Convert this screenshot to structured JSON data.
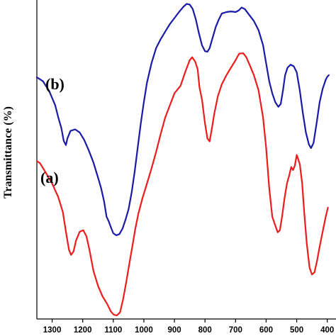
{
  "chart_data": {
    "type": "line",
    "title": "",
    "xlabel": "",
    "ylabel": "Transmittance (%)",
    "xlim": [
      1350,
      390
    ],
    "x_reversed": true,
    "x_ticks": [
      1300,
      1200,
      1100,
      1000,
      900,
      800,
      700,
      600,
      500,
      400
    ],
    "y_ticks": [],
    "grid": false,
    "series": [
      {
        "name": "(b)",
        "color": "#1a1aa8",
        "points": [
          [
            1350,
            75.3
          ],
          [
            1330,
            74.0
          ],
          [
            1310,
            70.8
          ],
          [
            1290,
            66.0
          ],
          [
            1280,
            62.0
          ],
          [
            1270,
            58.5
          ],
          [
            1262,
            54.2
          ],
          [
            1255,
            52.8
          ],
          [
            1250,
            55.0
          ],
          [
            1240,
            57.5
          ],
          [
            1225,
            58.0
          ],
          [
            1210,
            57.0
          ],
          [
            1195,
            54.5
          ],
          [
            1180,
            51.0
          ],
          [
            1165,
            47.0
          ],
          [
            1150,
            42.0
          ],
          [
            1140,
            38.5
          ],
          [
            1130,
            34.0
          ],
          [
            1122,
            29.0
          ],
          [
            1115,
            27.5
          ],
          [
            1108,
            25.5
          ],
          [
            1100,
            23.5
          ],
          [
            1090,
            22.8
          ],
          [
            1080,
            23.2
          ],
          [
            1070,
            25.0
          ],
          [
            1060,
            28.0
          ],
          [
            1050,
            31.5
          ],
          [
            1040,
            37.0
          ],
          [
            1030,
            44.0
          ],
          [
            1020,
            52.0
          ],
          [
            1010,
            60.0
          ],
          [
            1000,
            67.0
          ],
          [
            990,
            73.5
          ],
          [
            975,
            80.0
          ],
          [
            960,
            85.0
          ],
          [
            945,
            88.0
          ],
          [
            930,
            90.5
          ],
          [
            915,
            93.0
          ],
          [
            900,
            95.0
          ],
          [
            885,
            97.0
          ],
          [
            870,
            98.8
          ],
          [
            860,
            99.7
          ],
          [
            850,
            99.5
          ],
          [
            840,
            98.0
          ],
          [
            830,
            94.5
          ],
          [
            820,
            90.0
          ],
          [
            810,
            86.0
          ],
          [
            800,
            84.0
          ],
          [
            792,
            83.8
          ],
          [
            785,
            85.0
          ],
          [
            775,
            88.5
          ],
          [
            765,
            92.0
          ],
          [
            755,
            94.5
          ],
          [
            745,
            96.5
          ],
          [
            730,
            97.0
          ],
          [
            715,
            97.2
          ],
          [
            700,
            97.0
          ],
          [
            690,
            97.5
          ],
          [
            680,
            98.5
          ],
          [
            670,
            98.0
          ],
          [
            655,
            96.0
          ],
          [
            640,
            94.0
          ],
          [
            625,
            91.0
          ],
          [
            610,
            86.0
          ],
          [
            600,
            80.0
          ],
          [
            590,
            74.0
          ],
          [
            580,
            70.0
          ],
          [
            570,
            67.0
          ],
          [
            560,
            65.5
          ],
          [
            552,
            66.5
          ],
          [
            545,
            71.0
          ],
          [
            538,
            76.0
          ],
          [
            530,
            78.5
          ],
          [
            520,
            79.5
          ],
          [
            510,
            79.0
          ],
          [
            500,
            77.0
          ],
          [
            490,
            71.0
          ],
          [
            480,
            63.5
          ],
          [
            470,
            57.0
          ],
          [
            460,
            53.0
          ],
          [
            453,
            51.8
          ],
          [
            445,
            53.5
          ],
          [
            435,
            60.0
          ],
          [
            425,
            67.0
          ],
          [
            415,
            71.5
          ],
          [
            405,
            74.5
          ],
          [
            400,
            75.5
          ],
          [
            395,
            76.0
          ]
        ]
      },
      {
        "name": "(a)",
        "color": "#ee1c1c",
        "points": [
          [
            1350,
            47.5
          ],
          [
            1340,
            46.8
          ],
          [
            1320,
            43.5
          ],
          [
            1300,
            40.0
          ],
          [
            1280,
            35.5
          ],
          [
            1265,
            30.5
          ],
          [
            1255,
            24.0
          ],
          [
            1245,
            18.0
          ],
          [
            1238,
            16.3
          ],
          [
            1230,
            17.5
          ],
          [
            1222,
            21.0
          ],
          [
            1210,
            24.0
          ],
          [
            1198,
            24.5
          ],
          [
            1188,
            22.5
          ],
          [
            1178,
            18.0
          ],
          [
            1165,
            11.0
          ],
          [
            1150,
            6.0
          ],
          [
            1135,
            2.5
          ],
          [
            1120,
            0.0
          ],
          [
            1108,
            -2.5
          ],
          [
            1098,
            -3.6
          ],
          [
            1088,
            -3.8
          ],
          [
            1078,
            -2.8
          ],
          [
            1068,
            1.5
          ],
          [
            1058,
            7.0
          ],
          [
            1048,
            13.0
          ],
          [
            1038,
            19.0
          ],
          [
            1028,
            25.0
          ],
          [
            1018,
            30.0
          ],
          [
            1005,
            35.0
          ],
          [
            990,
            40.0
          ],
          [
            975,
            45.0
          ],
          [
            960,
            50.5
          ],
          [
            945,
            56.5
          ],
          [
            930,
            62.0
          ],
          [
            915,
            66.0
          ],
          [
            900,
            70.0
          ],
          [
            880,
            72.5
          ],
          [
            865,
            77.0
          ],
          [
            850,
            81.0
          ],
          [
            842,
            82.0
          ],
          [
            832,
            80.5
          ],
          [
            824,
            78.0
          ],
          [
            818,
            72.0
          ],
          [
            810,
            68.0
          ],
          [
            800,
            60.0
          ],
          [
            792,
            55.0
          ],
          [
            785,
            54.0
          ],
          [
            778,
            58.0
          ],
          [
            770,
            63.0
          ],
          [
            758,
            69.0
          ],
          [
            745,
            73.0
          ],
          [
            730,
            76.0
          ],
          [
            715,
            78.5
          ],
          [
            700,
            81.0
          ],
          [
            688,
            83.2
          ],
          [
            675,
            83.3
          ],
          [
            665,
            82.0
          ],
          [
            652,
            79.0
          ],
          [
            640,
            76.0
          ],
          [
            625,
            71.0
          ],
          [
            610,
            62.0
          ],
          [
            600,
            52.0
          ],
          [
            590,
            38.5
          ],
          [
            580,
            29.0
          ],
          [
            570,
            26.0
          ],
          [
            562,
            23.8
          ],
          [
            555,
            24.5
          ],
          [
            548,
            29.0
          ],
          [
            540,
            35.0
          ],
          [
            532,
            40.0
          ],
          [
            525,
            42.5
          ],
          [
            518,
            45.5
          ],
          [
            512,
            44.5
          ],
          [
            506,
            46.0
          ],
          [
            500,
            49.5
          ],
          [
            490,
            46.5
          ],
          [
            482,
            40.0
          ],
          [
            475,
            30.0
          ],
          [
            467,
            20.0
          ],
          [
            458,
            12.0
          ],
          [
            450,
            9.8
          ],
          [
            442,
            10.5
          ],
          [
            434,
            14.0
          ],
          [
            425,
            19.0
          ],
          [
            415,
            24.0
          ],
          [
            405,
            29.0
          ],
          [
            398,
            32.0
          ]
        ]
      }
    ]
  }
}
